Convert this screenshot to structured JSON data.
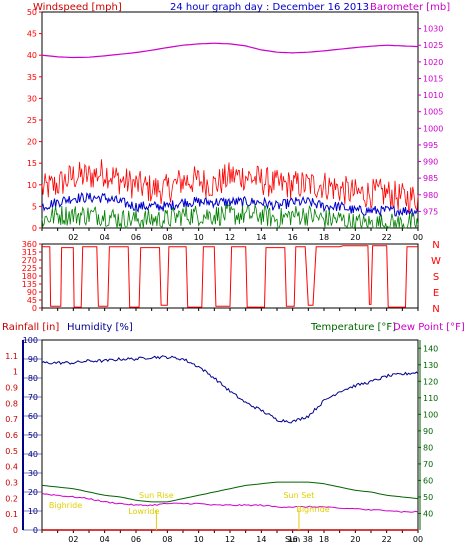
{
  "title": "24 hour graph day : December 16 2013",
  "colors": {
    "background": "#ffffff",
    "panel_border": "#000000",
    "grid": "#d8d8d8",
    "wind": "#ff0000",
    "wind_avg": "#0000cc",
    "gust_low": "#008000",
    "barometer": "#cc00cc",
    "direction": "#ff0000",
    "humidity": "#00008b",
    "temperature": "#006400",
    "dewpoint": "#cc00cc",
    "rainfall": "#cc0000",
    "sun_marker": "#e0d000",
    "tick_text": "#000000"
  },
  "x_ticks": [
    "02",
    "04",
    "06",
    "08",
    "10",
    "12",
    "14",
    "16",
    "18",
    "20",
    "22",
    "00"
  ],
  "chart_data": [
    {
      "type": "line",
      "name": "windspeed-barometer",
      "title": "24 hour graph day : December 16 2013",
      "left_label": "Windspeed [mph]",
      "right_label": "Barometer [mb]",
      "y_left": {
        "min": 0,
        "max": 50,
        "ticks": [
          "0",
          "5",
          "10",
          "15",
          "20",
          "25",
          "30",
          "35",
          "40",
          "45",
          "50"
        ]
      },
      "y_right": {
        "min": 970,
        "max": 1035,
        "ticks": [
          "975",
          "980",
          "985",
          "990",
          "995",
          "1000",
          "1005",
          "1010",
          "1015",
          "1020",
          "1025",
          "1030"
        ]
      },
      "x": [
        0,
        1,
        2,
        3,
        4,
        5,
        6,
        7,
        8,
        9,
        10,
        11,
        12,
        13,
        14,
        15,
        16,
        17,
        18,
        19,
        20,
        21,
        22,
        23,
        24
      ],
      "series": [
        {
          "name": "Windspeed max",
          "values": [
            9,
            10,
            12,
            12,
            13,
            11,
            10,
            9,
            9,
            11,
            11,
            10,
            12,
            12,
            11,
            10,
            10,
            10,
            10,
            9,
            8,
            8,
            8,
            7,
            7
          ]
        },
        {
          "name": "Windspeed avg",
          "values": [
            5,
            6,
            7,
            7,
            7,
            6,
            5,
            5,
            5,
            6,
            6,
            6,
            6,
            6,
            6,
            5,
            6,
            6,
            5,
            5,
            4,
            4,
            4,
            4,
            4
          ]
        },
        {
          "name": "Windspeed min",
          "values": [
            2,
            3,
            3,
            3,
            3,
            2,
            2,
            2,
            2,
            3,
            3,
            3,
            3,
            3,
            3,
            2,
            3,
            3,
            2,
            2,
            1,
            1,
            1,
            1,
            1
          ]
        },
        {
          "name": "Barometer",
          "values": [
            1022,
            1021.5,
            1021.3,
            1021.4,
            1021.8,
            1022.3,
            1022.8,
            1023.5,
            1024.3,
            1025,
            1025.4,
            1025.6,
            1025.4,
            1024.8,
            1023.6,
            1022.9,
            1022.7,
            1022.9,
            1023.3,
            1023.8,
            1024.3,
            1024.7,
            1025,
            1024.8,
            1024.6
          ]
        }
      ]
    },
    {
      "type": "line",
      "name": "wind-direction",
      "y_left": {
        "min": 0,
        "max": 360,
        "ticks": [
          "0",
          "45",
          "90",
          "135",
          "180",
          "225",
          "270",
          "315",
          "360"
        ]
      },
      "y_right_labels": [
        "N",
        "W",
        "S",
        "E",
        "N"
      ],
      "x": [
        0,
        0.5,
        0.55,
        1.2,
        1.25,
        2,
        2.05,
        2.5,
        2.6,
        3.5,
        3.6,
        4.2,
        4.3,
        5.5,
        5.6,
        6.2,
        6.3,
        7.5,
        7.6,
        8,
        8.1,
        9.2,
        9.3,
        10.2,
        10.3,
        11,
        11.1,
        12,
        12.1,
        13,
        13.1,
        14.2,
        14.3,
        15.5,
        15.6,
        16.1,
        16.2,
        16.8,
        17,
        17.3,
        17.5,
        19,
        19.2,
        20.8,
        20.9,
        21,
        21.1,
        22,
        22.1,
        23.2,
        23.3,
        24
      ],
      "values": [
        345,
        345,
        10,
        10,
        340,
        340,
        5,
        5,
        345,
        345,
        10,
        10,
        345,
        345,
        5,
        5,
        340,
        340,
        15,
        15,
        345,
        345,
        5,
        5,
        345,
        345,
        10,
        10,
        345,
        345,
        5,
        5,
        340,
        340,
        10,
        10,
        345,
        345,
        15,
        15,
        345,
        345,
        350,
        350,
        20,
        20,
        350,
        350,
        5,
        5,
        345,
        345
      ]
    },
    {
      "type": "line",
      "name": "rain-humidity-temperature",
      "left_label": "Rainfall [in]",
      "humidity_label": "Humidity [%]",
      "right_label": "Temperature [°F]",
      "dewpoint_label": "Dew Point [°F]",
      "y_rain": {
        "min": 0,
        "max": 1.2,
        "ticks": [
          "0",
          "0.1",
          "0.2",
          "0.3",
          "0.4",
          "0.5",
          "0.6",
          "0.7",
          "0.8",
          "0.9",
          "1",
          "1.1"
        ]
      },
      "y_humidity": {
        "min": 0,
        "max": 100,
        "ticks": [
          "0",
          "10",
          "20",
          "30",
          "40",
          "50",
          "60",
          "70",
          "80",
          "90",
          "100"
        ]
      },
      "y_temperature": {
        "min": 30,
        "max": 145,
        "ticks": [
          "40",
          "50",
          "60",
          "70",
          "80",
          "90",
          "100",
          "110",
          "120",
          "130",
          "140"
        ]
      },
      "x": [
        0,
        1,
        2,
        3,
        4,
        5,
        6,
        7,
        8,
        9,
        10,
        11,
        12,
        13,
        14,
        15,
        16,
        17,
        18,
        19,
        20,
        21,
        22,
        23,
        24
      ],
      "series": [
        {
          "name": "Humidity",
          "values": [
            88,
            88,
            88,
            89,
            89,
            90,
            90,
            91,
            91,
            90,
            86,
            80,
            73,
            67,
            63,
            58,
            57,
            60,
            68,
            73,
            76,
            78,
            81,
            82,
            83
          ]
        },
        {
          "name": "Temperature",
          "values": [
            57,
            56,
            55,
            53,
            51,
            50,
            48,
            47,
            47,
            49,
            51,
            53,
            55,
            57,
            58,
            59,
            59,
            59,
            58,
            56,
            54,
            53,
            51,
            50,
            49
          ]
        },
        {
          "name": "Dew Point",
          "values": [
            52,
            51,
            50,
            49,
            47,
            46,
            45,
            45,
            46,
            46,
            46,
            45,
            45,
            45,
            45,
            44,
            44,
            44,
            44,
            43,
            43,
            42,
            42,
            41,
            41
          ]
        },
        {
          "name": "Rainfall",
          "values": [
            0,
            0,
            0,
            0,
            0,
            0,
            0,
            0,
            0,
            0,
            0,
            0,
            0,
            0,
            0,
            0,
            0,
            0,
            0,
            0,
            0,
            0,
            0,
            0,
            0
          ]
        }
      ],
      "annotations": [
        {
          "text": "Bighride",
          "x": 1.5
        },
        {
          "text": "Lowride",
          "x": 6.5
        },
        {
          "text": "Sun Rise",
          "x": 7.3
        },
        {
          "text": "Sun Set",
          "x": 16.4
        },
        {
          "text": "Bighride",
          "x": 17.3
        }
      ],
      "sun_marker_label": "Sun 38"
    }
  ]
}
